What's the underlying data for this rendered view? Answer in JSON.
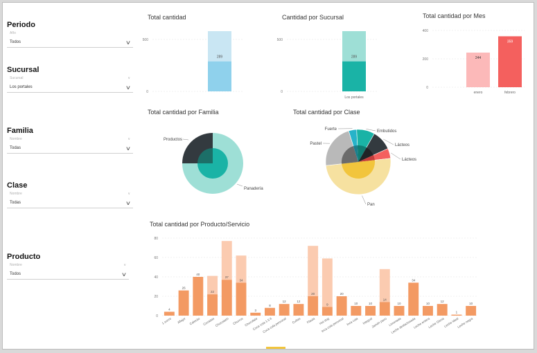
{
  "filters": [
    {
      "title": "Periodo",
      "sub": "Año",
      "value": "Todos"
    },
    {
      "title": "Sucursal",
      "sub": "Sucursal",
      "value": "Los portales"
    },
    {
      "title": "Familia",
      "sub": "Nombre",
      "value": "Todas"
    },
    {
      "title": "Clase",
      "sub": "Nombre",
      "value": "Todas"
    },
    {
      "title": "Producto",
      "sub": "Nombre",
      "value": "Todos"
    }
  ],
  "colors": {
    "bar_light": "#c9e6f3",
    "bar_blue": "#8fd1ec",
    "teal": "#1ab3a6",
    "teal_light": "#9edfd6",
    "pink": "#fcb9b9",
    "red": "#f4605e",
    "orange": "#f39a63",
    "orange_light": "#fbcbb0",
    "dark": "#333a3f",
    "yellow": "#f6e1a0",
    "yellow_dark": "#f2c53c",
    "gray": "#b9b9b9",
    "gray_dark": "#6b6b6b",
    "cyan": "#27b3c9"
  },
  "charts": {
    "total": {
      "title": "Total cantidad"
    },
    "sucursal": {
      "title": "Cantidad por Sucursal"
    },
    "mes": {
      "title": "Total cantidad por Mes"
    },
    "familia": {
      "title": "Total cantidad por Familia"
    },
    "clase": {
      "title": "Total cantidad por Clase"
    },
    "producto": {
      "title": "Total cantidad por Producto/Servicio"
    }
  },
  "chart_data": [
    {
      "type": "bar",
      "title": "Total cantidad",
      "yticks": [
        "500",
        "0"
      ],
      "ylim": [
        0,
        600
      ],
      "series": [
        {
          "values": [
            289
          ]
        }
      ],
      "total": 580,
      "data_labels": [
        "289"
      ]
    },
    {
      "type": "bar",
      "title": "Cantidad por Sucursal",
      "categories": [
        "Los portales"
      ],
      "yticks": [
        "500",
        "0"
      ],
      "ylim": [
        0,
        600
      ],
      "series": [
        {
          "values": [
            289
          ]
        }
      ],
      "total": 580,
      "data_labels": [
        "289"
      ]
    },
    {
      "type": "bar",
      "title": "Total cantidad por Mes",
      "categories": [
        "enero",
        "febrero"
      ],
      "yticks": [
        "400",
        "200",
        "0"
      ],
      "ylim": [
        0,
        400
      ],
      "series": [
        {
          "values": [
            244,
            359
          ]
        }
      ],
      "data_labels": [
        "244",
        "359"
      ]
    },
    {
      "type": "pie",
      "title": "Total cantidad por Familia",
      "categories": [
        "Productos",
        "Panadería"
      ],
      "values": [
        25,
        75
      ]
    },
    {
      "type": "pie",
      "title": "Total cantidad por Clase",
      "categories": [
        "Fuerte",
        "Embutidos",
        "Lácteos",
        "Lácteos",
        "Pan",
        "Pastel"
      ],
      "values": [
        4,
        9,
        10,
        5,
        50,
        22
      ]
    },
    {
      "type": "bar",
      "title": "Total cantidad por Producto/Servicio",
      "yticks": [
        "80",
        "60",
        "40",
        "20",
        "0"
      ],
      "ylim": [
        0,
        80
      ],
      "categories": [
        "1 sucre",
        "Alfajor",
        "Cafecito",
        "Cocadas",
        "Chocolatín",
        "Churros",
        "Chocolate",
        "Coca cola 1.5 lt",
        "Coca cola personal",
        "Cuñas",
        "Flauta",
        "Hot dog",
        "Inca cola personal",
        "Inca cola",
        "Integral",
        "Jamón pavo",
        "Limonada",
        "Leche deslactosada",
        "Leche entera",
        "Leche Gloria",
        "Leche Ideal",
        "Leche negra"
      ],
      "series": [
        {
          "values": [
            4,
            26,
            40,
            22,
            37,
            34,
            3,
            8,
            12,
            12,
            20,
            9,
            20,
            10,
            10,
            14,
            10,
            34,
            10,
            12,
            1,
            10
          ]
        },
        {
          "values": [
            0,
            0,
            0,
            19,
            40,
            28,
            0,
            0,
            0,
            0,
            52,
            50,
            0,
            0,
            0,
            34,
            0,
            0,
            0,
            0,
            0,
            0
          ]
        }
      ],
      "data_labels": [
        "4",
        "26",
        "40",
        "22",
        "37",
        "34",
        "3",
        "8",
        "12",
        "12",
        "20",
        "9",
        "20",
        "10",
        "10",
        "14",
        "10",
        "34",
        "10",
        "12",
        "1",
        "10"
      ]
    }
  ]
}
